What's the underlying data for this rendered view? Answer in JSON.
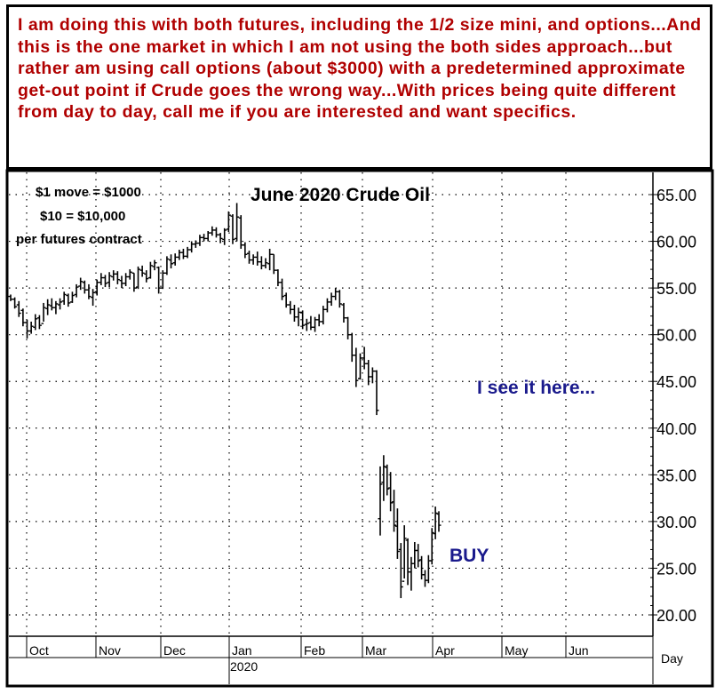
{
  "note": {
    "text": "I am doing this with both futures, including the 1/2 size mini, and options...And this is the one market in which I am not using the both sides approach...but rather am using call options (about $3000) with a predetermined approximate get-out point if Crude goes the wrong way...With prices being quite different from day to day, call me if you are interested and want specifics."
  },
  "chart_data": {
    "type": "bar",
    "subtype": "ohlc",
    "title": "June 2020 Crude Oil",
    "annotations": {
      "move_line1": "$1 move = $1000",
      "move_line2": "$10 = $10,000",
      "move_line3": "per futures contract",
      "see_it": "I see it here...",
      "buy": "BUY"
    },
    "y_ticks": [
      "65.00",
      "60.00",
      "55.00",
      "50.00",
      "45.00",
      "40.00",
      "35.00",
      "30.00",
      "25.00",
      "20.00"
    ],
    "ylim": [
      19.5,
      66
    ],
    "x_months": [
      "Oct",
      "Nov",
      "Dec",
      "Jan",
      "Feb",
      "Mar",
      "Apr",
      "May",
      "Jun"
    ],
    "year_label": "2020",
    "period_label": "Day",
    "grid": true,
    "bars": [
      {
        "h": 54.3,
        "l": 53.6,
        "o": 54.1,
        "c": 53.8
      },
      {
        "h": 54.0,
        "l": 52.8,
        "o": 53.8,
        "c": 53.0
      },
      {
        "h": 53.6,
        "l": 51.9,
        "o": 53.2,
        "c": 52.3
      },
      {
        "h": 52.8,
        "l": 50.9,
        "o": 52.6,
        "c": 51.3
      },
      {
        "h": 51.6,
        "l": 49.6,
        "o": 51.3,
        "c": 50.4
      },
      {
        "h": 51.4,
        "l": 50.1,
        "o": 50.4,
        "c": 50.9
      },
      {
        "h": 52.2,
        "l": 50.5,
        "o": 50.8,
        "c": 51.7
      },
      {
        "h": 52.1,
        "l": 50.6,
        "o": 51.8,
        "c": 51.0
      },
      {
        "h": 53.4,
        "l": 51.4,
        "o": 51.2,
        "c": 52.9
      },
      {
        "h": 53.8,
        "l": 52.1,
        "o": 52.8,
        "c": 53.2
      },
      {
        "h": 53.9,
        "l": 52.6,
        "o": 53.1,
        "c": 52.9
      },
      {
        "h": 53.6,
        "l": 52.2,
        "o": 52.9,
        "c": 53.3
      },
      {
        "h": 53.9,
        "l": 52.7,
        "o": 53.2,
        "c": 53.5
      },
      {
        "h": 54.6,
        "l": 53.2,
        "o": 53.6,
        "c": 54.3
      },
      {
        "h": 54.4,
        "l": 53.0,
        "o": 54.2,
        "c": 53.4
      },
      {
        "h": 54.6,
        "l": 53.4,
        "o": 53.5,
        "c": 54.2
      },
      {
        "h": 55.4,
        "l": 54.0,
        "o": 54.3,
        "c": 55.1
      },
      {
        "h": 56.1,
        "l": 54.8,
        "o": 55.2,
        "c": 55.7
      },
      {
        "h": 55.8,
        "l": 54.4,
        "o": 55.6,
        "c": 54.8
      },
      {
        "h": 55.4,
        "l": 53.8,
        "o": 54.8,
        "c": 54.1
      },
      {
        "h": 54.9,
        "l": 53.1,
        "o": 54.0,
        "c": 54.5
      },
      {
        "h": 55.9,
        "l": 54.2,
        "o": 54.6,
        "c": 55.6
      },
      {
        "h": 56.6,
        "l": 55.3,
        "o": 55.6,
        "c": 56.1
      },
      {
        "h": 56.4,
        "l": 55.1,
        "o": 56.1,
        "c": 55.5
      },
      {
        "h": 56.7,
        "l": 55.1,
        "o": 55.6,
        "c": 56.3
      },
      {
        "h": 56.9,
        "l": 55.8,
        "o": 56.2,
        "c": 56.5
      },
      {
        "h": 56.8,
        "l": 55.4,
        "o": 56.5,
        "c": 55.9
      },
      {
        "h": 56.3,
        "l": 55.0,
        "o": 55.8,
        "c": 55.5
      },
      {
        "h": 56.6,
        "l": 55.2,
        "o": 55.5,
        "c": 56.2
      },
      {
        "h": 57.0,
        "l": 55.9,
        "o": 56.2,
        "c": 56.7
      },
      {
        "h": 56.6,
        "l": 54.6,
        "o": 56.6,
        "c": 55.0
      },
      {
        "h": 57.3,
        "l": 54.9,
        "o": 55.1,
        "c": 57.0
      },
      {
        "h": 57.4,
        "l": 56.2,
        "o": 56.9,
        "c": 56.6
      },
      {
        "h": 56.9,
        "l": 55.6,
        "o": 56.5,
        "c": 56.0
      },
      {
        "h": 57.8,
        "l": 56.0,
        "o": 56.1,
        "c": 57.4
      },
      {
        "h": 58.0,
        "l": 56.9,
        "o": 57.3,
        "c": 57.7
      },
      {
        "h": 57.3,
        "l": 54.4,
        "o": 57.2,
        "c": 55.0
      },
      {
        "h": 56.9,
        "l": 54.9,
        "o": 55.0,
        "c": 56.6
      },
      {
        "h": 58.4,
        "l": 56.4,
        "o": 56.6,
        "c": 58.1
      },
      {
        "h": 58.6,
        "l": 57.1,
        "o": 58.0,
        "c": 57.6
      },
      {
        "h": 58.7,
        "l": 57.4,
        "o": 57.7,
        "c": 58.3
      },
      {
        "h": 59.1,
        "l": 58.0,
        "o": 58.3,
        "c": 58.8
      },
      {
        "h": 59.2,
        "l": 58.1,
        "o": 58.8,
        "c": 58.4
      },
      {
        "h": 59.4,
        "l": 58.2,
        "o": 58.4,
        "c": 59.1
      },
      {
        "h": 60.0,
        "l": 58.8,
        "o": 59.1,
        "c": 59.7
      },
      {
        "h": 60.1,
        "l": 59.3,
        "o": 59.7,
        "c": 59.8
      },
      {
        "h": 60.7,
        "l": 59.5,
        "o": 59.8,
        "c": 60.4
      },
      {
        "h": 60.8,
        "l": 60.0,
        "o": 60.4,
        "c": 60.3
      },
      {
        "h": 61.1,
        "l": 60.0,
        "o": 60.3,
        "c": 60.9
      },
      {
        "h": 61.6,
        "l": 60.6,
        "o": 60.9,
        "c": 61.2
      },
      {
        "h": 61.5,
        "l": 60.4,
        "o": 61.2,
        "c": 60.7
      },
      {
        "h": 60.9,
        "l": 59.8,
        "o": 60.7,
        "c": 60.3
      },
      {
        "h": 61.4,
        "l": 59.6,
        "o": 60.2,
        "c": 61.2
      },
      {
        "h": 63.2,
        "l": 61.0,
        "o": 61.3,
        "c": 62.8
      },
      {
        "h": 62.9,
        "l": 59.7,
        "o": 62.7,
        "c": 60.2
      },
      {
        "h": 64.1,
        "l": 60.0,
        "o": 60.3,
        "c": 62.6
      },
      {
        "h": 62.8,
        "l": 59.2,
        "o": 62.5,
        "c": 59.6
      },
      {
        "h": 59.9,
        "l": 58.2,
        "o": 59.6,
        "c": 58.6
      },
      {
        "h": 59.0,
        "l": 57.6,
        "o": 58.7,
        "c": 58.0
      },
      {
        "h": 58.6,
        "l": 57.5,
        "o": 58.0,
        "c": 58.3
      },
      {
        "h": 58.9,
        "l": 57.4,
        "o": 58.3,
        "c": 57.8
      },
      {
        "h": 58.4,
        "l": 57.0,
        "o": 57.8,
        "c": 57.4
      },
      {
        "h": 58.2,
        "l": 57.1,
        "o": 57.4,
        "c": 57.7
      },
      {
        "h": 59.2,
        "l": 56.9,
        "o": 57.6,
        "c": 58.6
      },
      {
        "h": 58.6,
        "l": 56.5,
        "o": 58.6,
        "c": 56.9
      },
      {
        "h": 57.0,
        "l": 55.2,
        "o": 56.9,
        "c": 55.6
      },
      {
        "h": 56.0,
        "l": 53.7,
        "o": 55.6,
        "c": 54.1
      },
      {
        "h": 54.5,
        "l": 52.9,
        "o": 54.2,
        "c": 53.2
      },
      {
        "h": 53.6,
        "l": 52.2,
        "o": 53.2,
        "c": 52.7
      },
      {
        "h": 53.2,
        "l": 51.4,
        "o": 52.7,
        "c": 51.9
      },
      {
        "h": 52.9,
        "l": 50.9,
        "o": 51.9,
        "c": 52.4
      },
      {
        "h": 52.6,
        "l": 50.6,
        "o": 52.4,
        "c": 51.0
      },
      {
        "h": 51.7,
        "l": 50.4,
        "o": 51.1,
        "c": 51.2
      },
      {
        "h": 52.0,
        "l": 50.5,
        "o": 51.3,
        "c": 50.8
      },
      {
        "h": 51.9,
        "l": 50.3,
        "o": 50.8,
        "c": 51.6
      },
      {
        "h": 52.2,
        "l": 50.9,
        "o": 51.6,
        "c": 51.4
      },
      {
        "h": 53.1,
        "l": 51.1,
        "o": 51.4,
        "c": 52.7
      },
      {
        "h": 53.9,
        "l": 52.4,
        "o": 52.7,
        "c": 53.5
      },
      {
        "h": 54.5,
        "l": 53.1,
        "o": 53.5,
        "c": 54.1
      },
      {
        "h": 55.0,
        "l": 53.7,
        "o": 54.1,
        "c": 54.6
      },
      {
        "h": 54.8,
        "l": 52.9,
        "o": 54.6,
        "c": 53.3
      },
      {
        "h": 53.4,
        "l": 51.3,
        "o": 53.2,
        "c": 51.8
      },
      {
        "h": 51.9,
        "l": 49.5,
        "o": 51.8,
        "c": 50.0
      },
      {
        "h": 50.2,
        "l": 47.1,
        "o": 50.0,
        "c": 47.8
      },
      {
        "h": 48.6,
        "l": 44.4,
        "o": 47.8,
        "c": 45.1
      },
      {
        "h": 48.0,
        "l": 45.2,
        "o": 45.3,
        "c": 47.5
      },
      {
        "h": 48.7,
        "l": 46.3,
        "o": 47.5,
        "c": 46.9
      },
      {
        "h": 47.3,
        "l": 44.6,
        "o": 46.9,
        "c": 45.5
      },
      {
        "h": 46.5,
        "l": 44.8,
        "o": 45.5,
        "c": 46.1
      },
      {
        "h": 46.2,
        "l": 41.4,
        "o": 46.1,
        "c": 41.9
      },
      {
        "h": 35.9,
        "l": 28.5,
        "o": 30.3,
        "c": 34.0
      },
      {
        "h": 37.1,
        "l": 32.2,
        "o": 34.2,
        "c": 35.9
      },
      {
        "h": 36.1,
        "l": 32.8,
        "o": 35.8,
        "c": 33.5
      },
      {
        "h": 35.3,
        "l": 31.1,
        "o": 33.6,
        "c": 32.0
      },
      {
        "h": 33.4,
        "l": 28.9,
        "o": 32.1,
        "c": 29.6
      },
      {
        "h": 31.4,
        "l": 26.0,
        "o": 29.5,
        "c": 26.8
      },
      {
        "h": 27.7,
        "l": 21.8,
        "o": 27.0,
        "c": 23.0
      },
      {
        "h": 29.6,
        "l": 23.9,
        "o": 23.6,
        "c": 28.2
      },
      {
        "h": 28.2,
        "l": 23.2,
        "o": 28.0,
        "c": 24.6
      },
      {
        "h": 26.2,
        "l": 22.6,
        "o": 24.6,
        "c": 25.5
      },
      {
        "h": 27.8,
        "l": 25.0,
        "o": 25.5,
        "c": 26.9
      },
      {
        "h": 27.6,
        "l": 25.1,
        "o": 26.9,
        "c": 25.8
      },
      {
        "h": 26.3,
        "l": 23.8,
        "o": 25.9,
        "c": 24.3
      },
      {
        "h": 24.8,
        "l": 23.0,
        "o": 24.3,
        "c": 23.7
      },
      {
        "h": 26.4,
        "l": 23.4,
        "o": 23.7,
        "c": 25.8
      },
      {
        "h": 29.3,
        "l": 25.4,
        "o": 25.8,
        "c": 28.8
      },
      {
        "h": 31.6,
        "l": 28.1,
        "o": 28.7,
        "c": 30.9
      },
      {
        "h": 31.1,
        "l": 28.9,
        "o": 30.8,
        "c": 29.6
      }
    ]
  }
}
